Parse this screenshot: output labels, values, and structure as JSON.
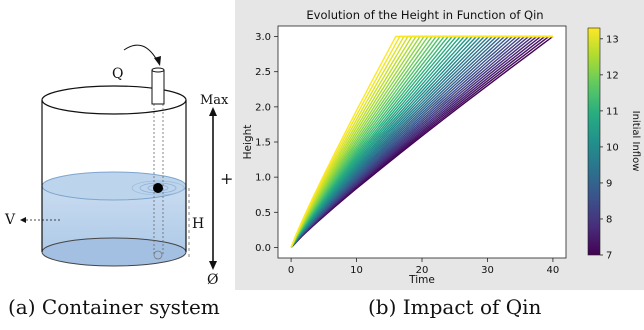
{
  "diagram": {
    "label_q": "Q",
    "label_v": "V",
    "label_h": "H",
    "label_max": "Max",
    "label_plus": "+",
    "label_zero": "Ø"
  },
  "captions": {
    "a": "(a) Container system",
    "b": "(b) Impact of Qin"
  },
  "chart_data": {
    "type": "line",
    "title": "Evolution of the Height in Function of Qin",
    "xlabel": "Time",
    "ylabel": "Height",
    "xlim": [
      -2,
      42
    ],
    "ylim": [
      -0.15,
      3.15
    ],
    "xticks": [
      0,
      10,
      20,
      30,
      40
    ],
    "yticks": [
      0.0,
      0.5,
      1.0,
      1.5,
      2.0,
      2.5,
      3.0
    ],
    "colorbar": {
      "label": "Initial Inflow",
      "colormap": "viridis",
      "range": [
        7,
        13.3
      ],
      "ticks": [
        7,
        8,
        9,
        10,
        11,
        12,
        13
      ]
    },
    "curve_max_height": 3.0,
    "series_ensemble": {
      "count": 40,
      "shape": "linear rise from 0 then plateau at 3.0",
      "time_to_plateau_range": [
        16,
        40
      ],
      "end_time": 40
    }
  }
}
